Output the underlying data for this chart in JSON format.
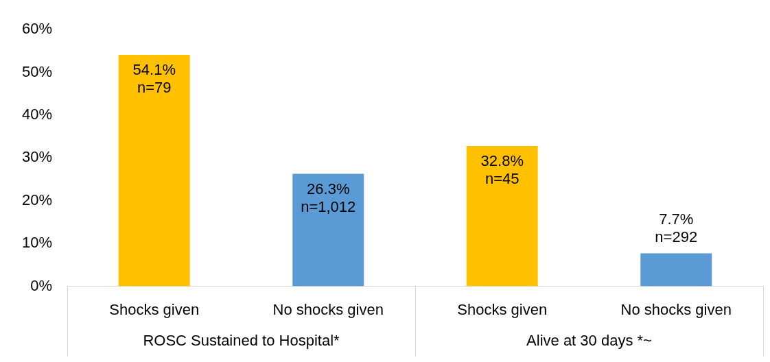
{
  "chart_data": {
    "type": "bar",
    "categories": [
      "Shocks given",
      "No shocks given",
      "Shocks given",
      "No shocks given"
    ],
    "values": [
      54.1,
      26.3,
      32.8,
      7.7
    ],
    "colors": [
      "#ffc000",
      "#5b9bd5",
      "#ffc000",
      "#5b9bd5"
    ],
    "value_labels": [
      "54.1%\nn=79",
      "26.3%\nn=1,012",
      "32.8%\nn=45",
      "7.7%\nn=292"
    ],
    "ylim": [
      0,
      60
    ],
    "yticks": [
      {
        "value": 0,
        "label": "0%"
      },
      {
        "value": 10,
        "label": "10%"
      },
      {
        "value": 20,
        "label": "20%"
      },
      {
        "value": 30,
        "label": "30%"
      },
      {
        "value": 40,
        "label": "40%"
      },
      {
        "value": 50,
        "label": "50%"
      },
      {
        "value": 60,
        "label": "60%"
      }
    ],
    "annotations": [
      "ROSC Sustained to Hospital*",
      "Alive at 30 days *~"
    ],
    "grid": false,
    "legend": false
  }
}
